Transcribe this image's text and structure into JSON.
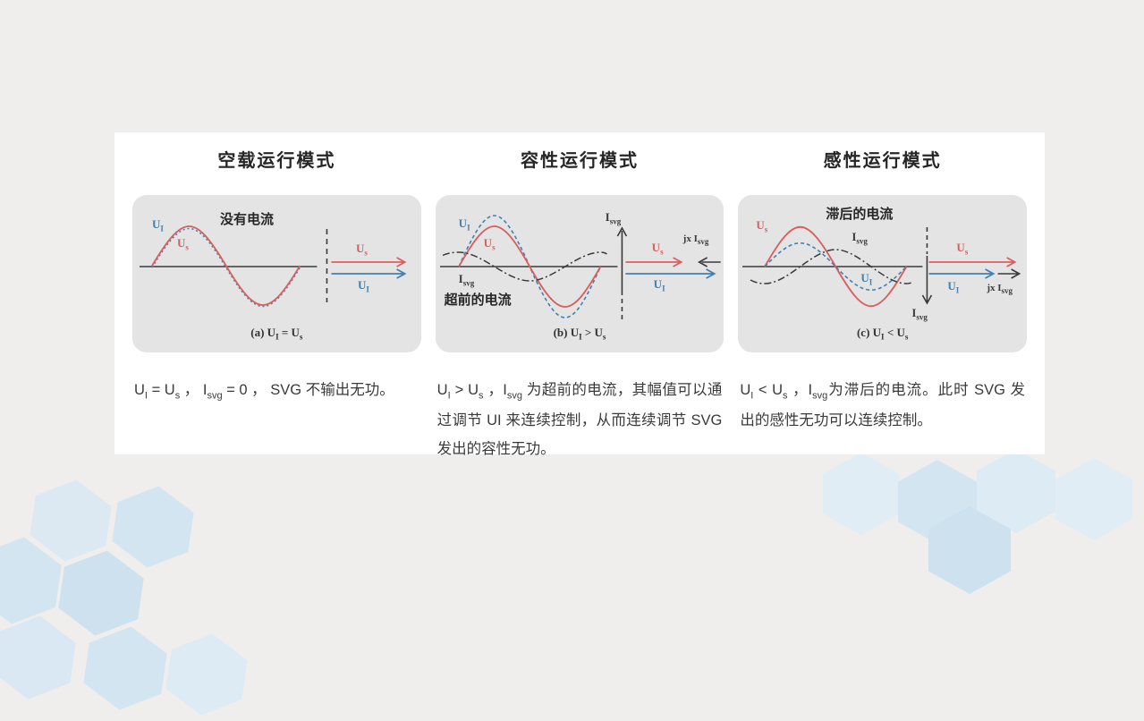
{
  "theme": {
    "page_bg": "#efeeec",
    "card_bg": "#ffffff",
    "panel_bg": "#e4e4e4",
    "red": "#d95f5f",
    "blue": "#4180b0",
    "curve_dark": "#3a3a3a",
    "hex_blue_light": "#dfecf5",
    "hex_blue": "#d3e5f1",
    "hex_blue_dark": "#cde1ee"
  },
  "sections": [
    {
      "title": "空载运行模式",
      "note": "没有电流",
      "labels": {
        "wave_ui": [
          {
            "t": "U"
          },
          {
            "s": "I"
          }
        ],
        "wave_us": [
          {
            "t": "U"
          },
          {
            "s": "s"
          }
        ],
        "phasor_us": [
          {
            "t": "U"
          },
          {
            "s": "s"
          }
        ],
        "phasor_ui": [
          {
            "t": "U"
          },
          {
            "s": "I"
          }
        ]
      },
      "caption": [
        {
          "t": "(a)  U"
        },
        {
          "s": "I"
        },
        {
          "t": " = U"
        },
        {
          "s": "s"
        }
      ],
      "description": [
        {
          "t": "U"
        },
        {
          "s": "I"
        },
        {
          "t": " = U"
        },
        {
          "s": "s"
        },
        {
          "t": " ， I"
        },
        {
          "s": "svg"
        },
        {
          "t": " = 0 ， SVG 不输出无功。"
        }
      ]
    },
    {
      "title": "容性运行模式",
      "note": "超前的电流",
      "labels": {
        "wave_ui": [
          {
            "t": "U"
          },
          {
            "s": "I"
          }
        ],
        "wave_us": [
          {
            "t": "U"
          },
          {
            "s": "s"
          }
        ],
        "wave_isvg": [
          {
            "t": "I"
          },
          {
            "s": "svg"
          }
        ],
        "phasor_isvg": [
          {
            "t": "I"
          },
          {
            "s": "svg"
          }
        ],
        "phasor_us": [
          {
            "t": "U"
          },
          {
            "s": "s"
          }
        ],
        "phasor_ui": [
          {
            "t": "U"
          },
          {
            "s": "I"
          }
        ],
        "phasor_jxisvg": [
          {
            "t": "jx I"
          },
          {
            "s": "svg"
          }
        ]
      },
      "caption": [
        {
          "t": "(b)  U"
        },
        {
          "s": "I"
        },
        {
          "t": " > U"
        },
        {
          "s": "s"
        }
      ],
      "description": [
        {
          "t": "U"
        },
        {
          "s": "I"
        },
        {
          "t": " > U"
        },
        {
          "s": "s"
        },
        {
          "t": " ，I"
        },
        {
          "s": "svg"
        },
        {
          "t": " 为超前的电流，其幅值可以通过调节 UI 来连续控制，从而连续调节 SVG 发出的容性无功。"
        }
      ]
    },
    {
      "title": "感性运行模式",
      "note": "滞后的电流",
      "labels": {
        "wave_ui": [
          {
            "t": "U"
          },
          {
            "s": "I"
          }
        ],
        "wave_us": [
          {
            "t": "U"
          },
          {
            "s": "s"
          }
        ],
        "wave_isvg": [
          {
            "t": "I"
          },
          {
            "s": "svg"
          }
        ],
        "phasor_isvg": [
          {
            "t": "I"
          },
          {
            "s": "svg"
          }
        ],
        "phasor_us": [
          {
            "t": "U"
          },
          {
            "s": "s"
          }
        ],
        "phasor_ui": [
          {
            "t": "U"
          },
          {
            "s": "I"
          }
        ],
        "phasor_jxisvg": [
          {
            "t": "jx I"
          },
          {
            "s": "svg"
          }
        ]
      },
      "caption": [
        {
          "t": "(c)  U"
        },
        {
          "s": "I"
        },
        {
          "t": " < U"
        },
        {
          "s": "s"
        }
      ],
      "description": [
        {
          "t": "U"
        },
        {
          "s": "I"
        },
        {
          "t": " <  U"
        },
        {
          "s": "s"
        },
        {
          "t": " ，I"
        },
        {
          "s": "svg"
        },
        {
          "t": "为滞后的电流。此时 SVG 发出的感性无功可以连续控制。"
        }
      ]
    }
  ]
}
